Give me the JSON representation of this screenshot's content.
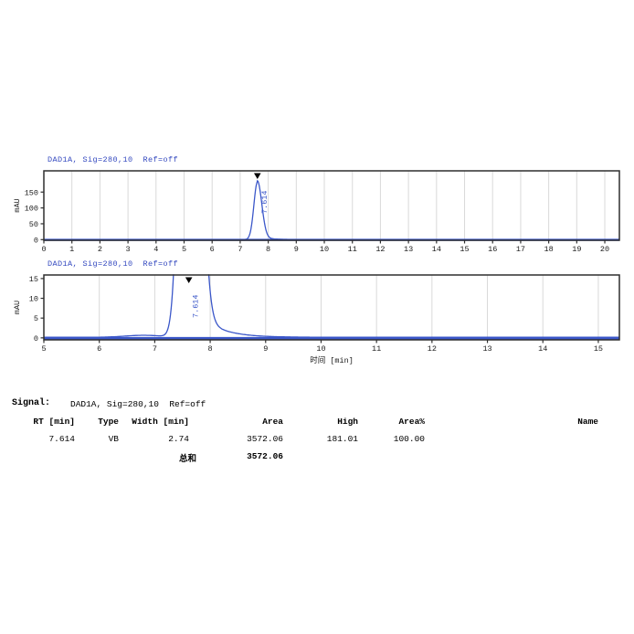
{
  "colors": {
    "title_blue": "#3348bf",
    "curve_blue": "#3b57c9",
    "frame": "#2f2f2f",
    "grid": "#d9d9d9",
    "tick_text": "#1a1a1a",
    "marker": "#000000"
  },
  "chart_data": [
    {
      "type": "line",
      "title": "DAD1A, Sig=280,10  Ref=off",
      "xlabel": "",
      "ylabel": "mAU",
      "xlim": [
        0,
        20.52
      ],
      "ylim": [
        -2,
        217
      ],
      "xticks": [
        0,
        1,
        2,
        3,
        4,
        5,
        6,
        7,
        8,
        9,
        10,
        11,
        12,
        13,
        14,
        15,
        16,
        17,
        18,
        19,
        20
      ],
      "yticks": [
        0,
        50,
        100,
        150
      ],
      "grid": "vertical-light",
      "legend": false,
      "peaks": [
        {
          "rt": 7.614,
          "label": "7.614",
          "height": 181.01,
          "width": 2.74,
          "area": 3572.06,
          "area_pct": 100.0,
          "type": "VB",
          "marker": "down-triangle"
        }
      ],
      "peak_shape": {
        "baseline": 0.15,
        "sigma_left": 0.125,
        "sigma_right": 0.155,
        "tail_amp": 4.5,
        "tail_offset": 0.29,
        "tail_tau": 0.38,
        "bump_x": 6.8,
        "bump_h": 0.5,
        "bump_s": 0.33
      }
    },
    {
      "type": "line",
      "title": "DAD1A, Sig=280,10  Ref=off",
      "xlabel": "时间 [min]",
      "ylabel": "mAU",
      "xlim": [
        5,
        15.38
      ],
      "ylim": [
        -0.5,
        15.9
      ],
      "xticks": [
        5,
        6,
        7,
        8,
        9,
        10,
        11,
        12,
        13,
        14,
        15
      ],
      "yticks": [
        0,
        5,
        10,
        15
      ],
      "grid": "vertical-light",
      "legend": false,
      "clipped_peak": true,
      "peaks": [
        {
          "rt": 7.614,
          "label": "7.614",
          "height": 181.01,
          "width": 2.74,
          "area": 3572.06,
          "area_pct": 100.0,
          "type": "VB",
          "marker": "down-triangle"
        }
      ],
      "peak_shape": {
        "baseline": 0.15,
        "sigma_left": 0.125,
        "sigma_right": 0.155,
        "tail_amp": 4.5,
        "tail_offset": 0.29,
        "tail_tau": 0.38,
        "bump_x": 6.8,
        "bump_h": 0.5,
        "bump_s": 0.33
      }
    }
  ],
  "report": {
    "signal_label": "Signal:",
    "signal_value": "DAD1A, Sig=280,10  Ref=off"
  },
  "table": {
    "headers": [
      "RT [min]",
      "Type",
      "Width [min]",
      "Area",
      "High",
      "Area%",
      "Name"
    ],
    "rows": [
      [
        "7.614",
        "VB",
        "2.74",
        "3572.06",
        "181.01",
        "100.00",
        ""
      ]
    ],
    "total_label": "总和",
    "total_area": "3572.06"
  }
}
